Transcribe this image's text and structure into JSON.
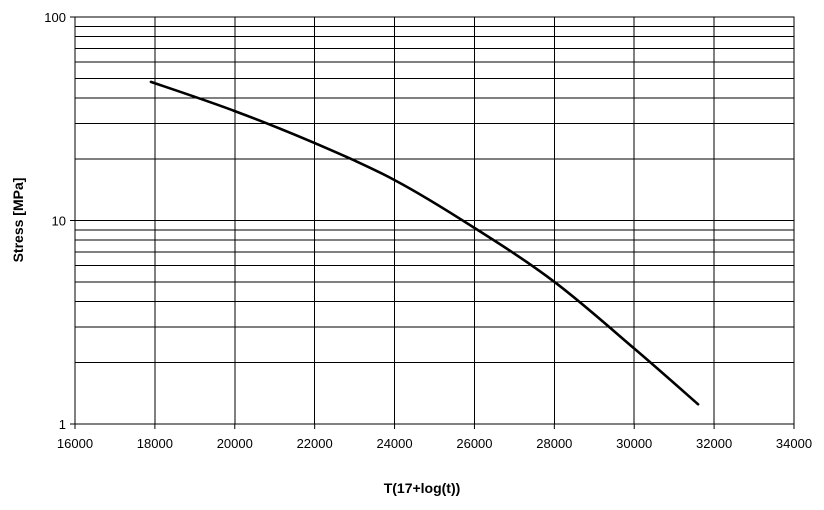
{
  "chart_data": {
    "type": "line",
    "title": "",
    "xlabel": "T(17+log(t))",
    "ylabel": "Stress [MPa]",
    "xlim": [
      16000,
      34000
    ],
    "ylim": [
      1,
      100
    ],
    "y_scale": "log",
    "grid": true,
    "legend": "none",
    "x_ticks": [
      "16000",
      "18000",
      "20000",
      "22000",
      "24000",
      "26000",
      "28000",
      "30000",
      "32000",
      "34000"
    ],
    "x_tick_values": [
      16000,
      18000,
      20000,
      22000,
      24000,
      26000,
      28000,
      30000,
      32000,
      34000
    ],
    "y_ticks": [
      "1",
      "10",
      "100"
    ],
    "y_tick_values": [
      1,
      10,
      100
    ],
    "line_color": "#000000",
    "series": [
      {
        "x": [
          17900,
          20000,
          22000,
          24000,
          26000,
          28000,
          30000,
          31600
        ],
        "y": [
          48,
          34.5,
          24,
          15.8,
          9.2,
          5.0,
          2.35,
          1.25
        ]
      }
    ]
  }
}
